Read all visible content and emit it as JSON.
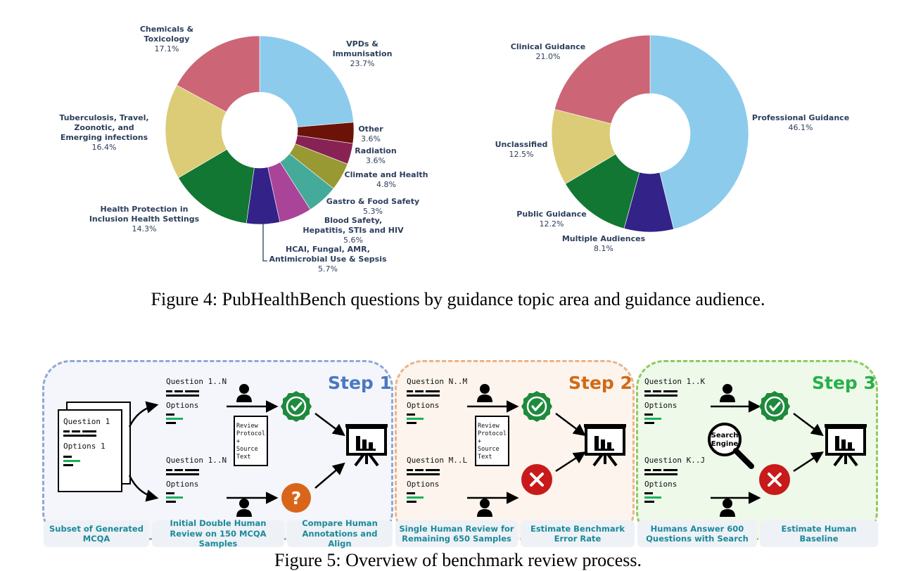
{
  "chart_data": [
    {
      "type": "pie",
      "slices": [
        {
          "label": "VPDs & Immunisation",
          "value": 23.7,
          "pct": "23.7%",
          "color": "#8dcbec"
        },
        {
          "label": "Other",
          "value": 3.6,
          "pct": "3.6%",
          "color": "#6b1308"
        },
        {
          "label": "Radiation",
          "value": 3.6,
          "pct": "3.6%",
          "color": "#882255"
        },
        {
          "label": "Climate and Health",
          "value": 4.8,
          "pct": "4.8%",
          "color": "#999933"
        },
        {
          "label": "Gastro & Food Safety",
          "value": 5.3,
          "pct": "5.3%",
          "color": "#44aa99"
        },
        {
          "label": "Blood Safety, Hepatitis, STIs and HIV",
          "value": 5.6,
          "pct": "5.6%",
          "color": "#aa4499"
        },
        {
          "label": "HCAI, Fungal, AMR, Antimicrobial Use & Sepsis",
          "value": 5.7,
          "pct": "5.7%",
          "color": "#332288"
        },
        {
          "label": "Health Protection in Inclusion Health Settings",
          "value": 14.3,
          "pct": "14.3%",
          "color": "#117733"
        },
        {
          "label": "Tuberculosis, Travel, Zoonotic, and Emerging infections",
          "value": 16.4,
          "pct": "16.4%",
          "color": "#ddcc77"
        },
        {
          "label": "Chemicals & Toxicology",
          "value": 17.1,
          "pct": "17.1%",
          "color": "#cc6677"
        }
      ]
    },
    {
      "type": "pie",
      "slices": [
        {
          "label": "Professional Guidance",
          "value": 46.1,
          "pct": "46.1%",
          "color": "#8dcbec"
        },
        {
          "label": "Multiple Audiences",
          "value": 8.1,
          "pct": "8.1%",
          "color": "#332288"
        },
        {
          "label": "Public Guidance",
          "value": 12.2,
          "pct": "12.2%",
          "color": "#117733"
        },
        {
          "label": "Unclassified",
          "value": 12.5,
          "pct": "12.5%",
          "color": "#ddcc77"
        },
        {
          "label": "Clinical Guidance",
          "value": 21.0,
          "pct": "21.0%",
          "color": "#cc6677"
        }
      ]
    }
  ],
  "captions": {
    "fig4": "Figure 4: PubHealthBench questions by guidance topic area and guidance audience.",
    "fig5": "Figure 5: Overview of benchmark review process."
  },
  "diagram": {
    "steps": [
      {
        "title": "Step 1",
        "color": "#4a78c2",
        "border": "#8fa8d6",
        "bg": "#f4f6fb"
      },
      {
        "title": "Step 2",
        "color": "#d06a14",
        "border": "#e9b48a",
        "bg": "#fdf4ed"
      },
      {
        "title": "Step 3",
        "color": "#27b04a",
        "border": "#8ccc5e",
        "bg": "#eef9ea"
      }
    ],
    "doc": {
      "question": "Question 1",
      "options": "Options 1"
    },
    "questions": {
      "s1_top": "Question 1..N",
      "s1_bottom": "Question 1..N",
      "s2_top": "Question N..M",
      "s2_bottom": "Question M..L",
      "s3_top": "Question 1..K",
      "s3_bottom": "Question K..J",
      "options": "Options"
    },
    "protocol_lines": [
      "Review",
      "Protocol",
      "+",
      "Source",
      "Text"
    ],
    "search_lines": [
      "Search",
      "Engine"
    ],
    "question_mark": "?",
    "boxes": [
      "Subset of Generated MCQA",
      "Initial Double Human Review on 150 MCQA Samples",
      "Compare Human Annotations and Align",
      "Single Human Review for Remaining 650 Samples",
      "Estimate Benchmark Error Rate",
      "Humans Answer 600 Questions with Search",
      "Estimate Human Baseline"
    ]
  }
}
